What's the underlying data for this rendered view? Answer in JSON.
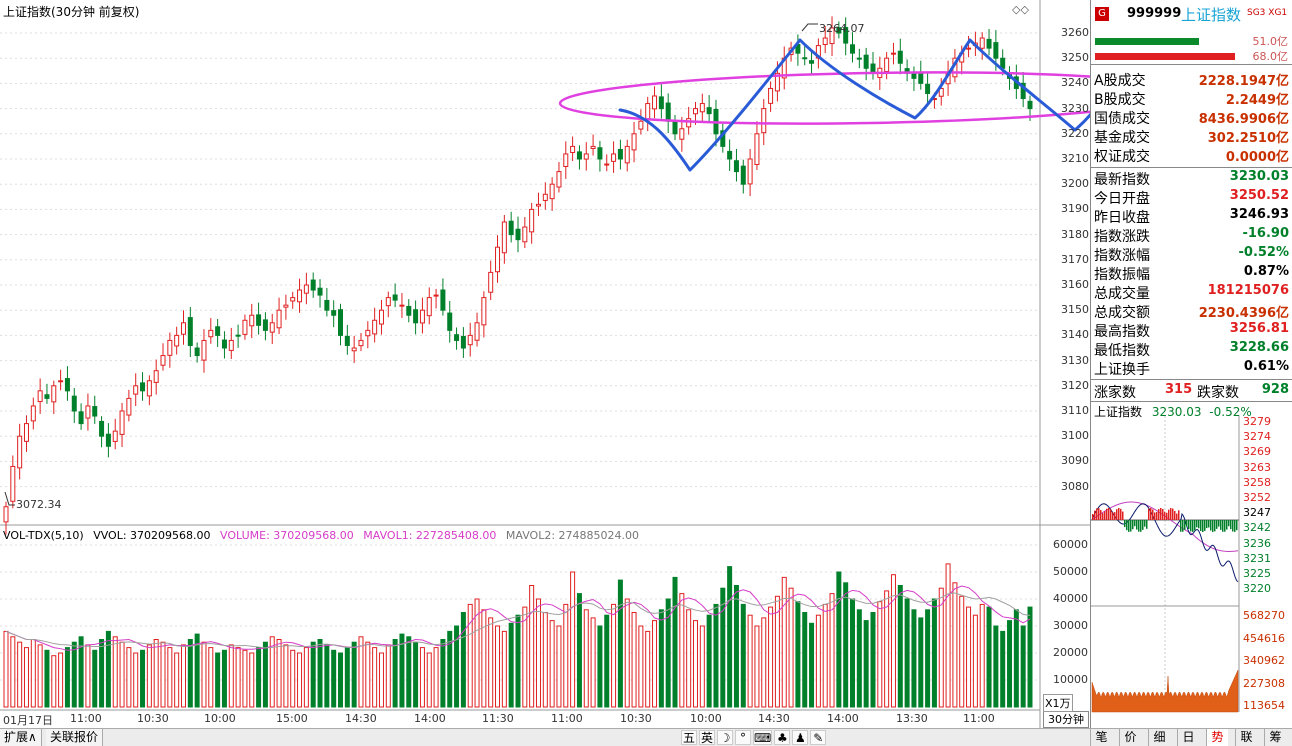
{
  "chart": {
    "title": "上证指数(30分钟 前复权)",
    "icons": [
      "diamond-icon",
      "diamond-icon"
    ],
    "peak_label": "3264.07",
    "low_label": "3072.34",
    "y_ticks": [
      "3260",
      "3250",
      "3240",
      "3230",
      "3220",
      "3210",
      "3200",
      "3190",
      "3180",
      "3170",
      "3160",
      "3150",
      "3140",
      "3130",
      "3120",
      "3110",
      "3100",
      "3090",
      "3080"
    ],
    "x_labels": [
      "01月17日",
      "11:00",
      "10:30",
      "10:00",
      "15:00",
      "14:30",
      "14:00",
      "11:30",
      "11:00",
      "10:30",
      "10:00",
      "14:30",
      "14:00",
      "13:30",
      "11:00"
    ],
    "period": "30分钟",
    "unit": "X1万"
  },
  "volume": {
    "indicator": "VOL-TDX(5,10)",
    "vvol": "VVOL: 370209568.00",
    "volume": "VOLUME: 370209568.00",
    "mavol1": "MAVOL1: 227285408.00",
    "mavol2": "MAVOL2: 274885024.00",
    "y_ticks": [
      "60000",
      "50000",
      "40000",
      "30000",
      "20000",
      "10000"
    ]
  },
  "colors": {
    "up": "#e02020",
    "down": "#00802a",
    "accent_cyan": "#1aa4d4",
    "annotation_blue": "#2a5bd7",
    "annotation_magenta": "#e040e0",
    "mavol1": "#d63cc8",
    "mavol2": "#a0a0a0"
  },
  "chart_data": {
    "type": "candlestick",
    "title": "上证指数(30分钟 前复权)",
    "ylim": [
      3065,
      3268
    ],
    "closes": [
      3072,
      3088,
      3100,
      3105,
      3112,
      3118,
      3115,
      3120,
      3122,
      3118,
      3110,
      3105,
      3112,
      3108,
      3100,
      3096,
      3102,
      3110,
      3115,
      3120,
      3118,
      3122,
      3126,
      3132,
      3138,
      3140,
      3145,
      3136,
      3132,
      3138,
      3142,
      3140,
      3135,
      3138,
      3140,
      3146,
      3148,
      3144,
      3142,
      3145,
      3150,
      3152,
      3155,
      3158,
      3160,
      3158,
      3156,
      3150,
      3148,
      3140,
      3136,
      3135,
      3138,
      3142,
      3146,
      3150,
      3155,
      3154,
      3152,
      3148,
      3145,
      3150,
      3155,
      3156,
      3150,
      3142,
      3138,
      3135,
      3140,
      3145,
      3155,
      3165,
      3175,
      3185,
      3180,
      3178,
      3183,
      3190,
      3192,
      3196,
      3200,
      3205,
      3212,
      3215,
      3210,
      3212,
      3215,
      3210,
      3208,
      3212,
      3210,
      3215,
      3220,
      3225,
      3232,
      3235,
      3230,
      3225,
      3220,
      3222,
      3226,
      3230,
      3232,
      3228,
      3220,
      3215,
      3210,
      3205,
      3200,
      3210,
      3220,
      3230,
      3238,
      3244,
      3250,
      3254,
      3252,
      3250,
      3248,
      3255,
      3258,
      3262,
      3260,
      3256,
      3252,
      3250,
      3246,
      3244,
      3246,
      3250,
      3252,
      3248,
      3244,
      3242,
      3240,
      3236,
      3234,
      3238,
      3244,
      3250,
      3252,
      3254,
      3256,
      3258,
      3254,
      3250,
      3246,
      3242,
      3238,
      3234,
      3230
    ],
    "volumes": [
      28000,
      26000,
      24000,
      22000,
      25000,
      23000,
      21000,
      19000,
      20000,
      22000,
      24000,
      26000,
      23000,
      21000,
      25000,
      28000,
      26000,
      24000,
      22000,
      20000,
      21000,
      23000,
      25000,
      24000,
      22000,
      20000,
      23000,
      25000,
      27000,
      24000,
      22000,
      20000,
      21000,
      23000,
      22000,
      21000,
      20000,
      22000,
      24000,
      26000,
      25000,
      23000,
      21000,
      20000,
      22000,
      24000,
      25000,
      23000,
      21000,
      20000,
      22000,
      24000,
      26000,
      24000,
      22000,
      20000,
      23000,
      25000,
      27000,
      26000,
      24000,
      22000,
      20000,
      22000,
      25000,
      28000,
      30000,
      35000,
      38000,
      40000,
      36000,
      33000,
      30000,
      28000,
      31000,
      34000,
      37000,
      45000,
      40000,
      35000,
      32000,
      30000,
      38000,
      50000,
      42000,
      36000,
      33000,
      30000,
      34000,
      38000,
      47000,
      40000,
      35000,
      30000,
      28000,
      32000,
      36000,
      40000,
      48000,
      42000,
      36000,
      32000,
      30000,
      34000,
      38000,
      44000,
      52000,
      45000,
      38000,
      34000,
      30000,
      33000,
      37000,
      41000,
      48000,
      44000,
      39000,
      35000,
      31000,
      34000,
      38000,
      42000,
      50000,
      46000,
      40000,
      36000,
      32000,
      35000,
      39000,
      43000,
      49000,
      45000,
      40000,
      36000,
      33000,
      36000,
      40000,
      44000,
      53000,
      46000,
      41000,
      37000,
      34000,
      38000,
      37000,
      30000,
      28000,
      32000,
      36000,
      30000,
      37000
    ]
  },
  "quote": {
    "badge": "G",
    "code": "999999",
    "name": "上证指数",
    "tags": "SG3 XG1",
    "bar1_val": "51.0亿",
    "bar2_val": "68.0亿",
    "rows": [
      {
        "label": "A股成交",
        "value": "2228.1947亿",
        "color": "#c83000"
      },
      {
        "label": "B股成交",
        "value": "2.2449亿",
        "color": "#c83000"
      },
      {
        "label": "国债成交",
        "value": "8436.9906亿",
        "color": "#c83000"
      },
      {
        "label": "基金成交",
        "value": "302.2510亿",
        "color": "#c83000"
      },
      {
        "label": "权证成交",
        "value": "0.0000亿",
        "color": "#c83000"
      },
      {
        "label": "最新指数",
        "value": "3230.03",
        "color": "#00802a"
      },
      {
        "label": "今日开盘",
        "value": "3250.52",
        "color": "#e02020"
      },
      {
        "label": "昨日收盘",
        "value": "3246.93",
        "color": "#000000"
      },
      {
        "label": "指数涨跌",
        "value": "-16.90",
        "color": "#00802a"
      },
      {
        "label": "指数涨幅",
        "value": "-0.52%",
        "color": "#00802a"
      },
      {
        "label": "指数振幅",
        "value": "0.87%",
        "color": "#000000"
      },
      {
        "label": "总成交量",
        "value": "181215076",
        "color": "#e02020"
      },
      {
        "label": "总成交额",
        "value": "2230.4396亿",
        "color": "#c83000"
      },
      {
        "label": "最高指数",
        "value": "3256.81",
        "color": "#e02020"
      },
      {
        "label": "最低指数",
        "value": "3228.66",
        "color": "#00802a"
      },
      {
        "label": "上证换手",
        "value": "0.61%",
        "color": "#000000"
      }
    ],
    "adv_label": "涨家数",
    "adv_value": "315",
    "dec_label": "跌家数",
    "dec_value": "928"
  },
  "mini": {
    "title": "上证指数",
    "last": "3230.03",
    "pct": "-0.52%",
    "y_ticks": [
      "3279",
      "3274",
      "3269",
      "3263",
      "3258",
      "3252",
      "3247",
      "3242",
      "3236",
      "3231",
      "3225",
      "3220"
    ],
    "vol_ticks": [
      "568270",
      "454616",
      "340962",
      "227308",
      "113654"
    ]
  },
  "bottom": {
    "left_tabs": [
      "扩展∧",
      "关联报价"
    ],
    "tools": [
      "五",
      "英",
      "☽",
      "°",
      "⌨",
      "♣",
      "♟",
      "✎"
    ],
    "right_tabs": [
      "笔",
      "价",
      "细",
      "日",
      "势",
      "联",
      "筹"
    ],
    "active_right": "势"
  }
}
